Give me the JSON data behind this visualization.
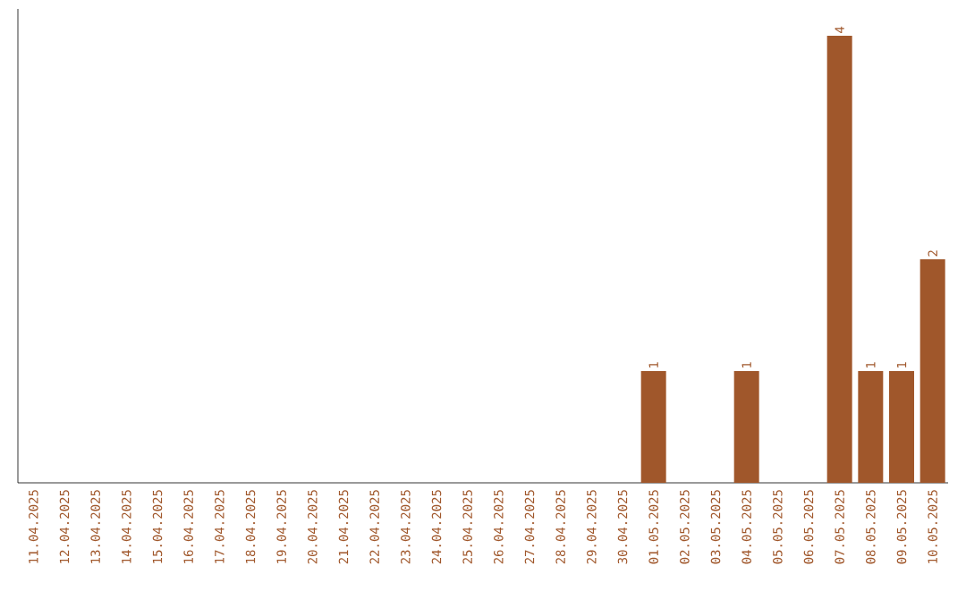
{
  "chart_data": {
    "type": "bar",
    "categories": [
      "11.04.2025",
      "12.04.2025",
      "13.04.2025",
      "14.04.2025",
      "15.04.2025",
      "16.04.2025",
      "17.04.2025",
      "18.04.2025",
      "19.04.2025",
      "20.04.2025",
      "21.04.2025",
      "22.04.2025",
      "23.04.2025",
      "24.04.2025",
      "25.04.2025",
      "26.04.2025",
      "27.04.2025",
      "28.04.2025",
      "29.04.2025",
      "30.04.2025",
      "01.05.2025",
      "02.05.2025",
      "03.05.2025",
      "04.05.2025",
      "05.05.2025",
      "06.05.2025",
      "07.05.2025",
      "08.05.2025",
      "09.05.2025",
      "10.05.2025"
    ],
    "values": [
      null,
      null,
      null,
      null,
      null,
      null,
      null,
      null,
      null,
      null,
      null,
      null,
      null,
      null,
      null,
      null,
      null,
      null,
      null,
      null,
      1,
      null,
      null,
      1,
      null,
      null,
      4,
      1,
      1,
      2
    ],
    "value_labels": [
      null,
      null,
      null,
      null,
      null,
      null,
      null,
      null,
      null,
      null,
      null,
      null,
      null,
      null,
      null,
      null,
      null,
      null,
      null,
      null,
      "1",
      null,
      null,
      "1",
      null,
      null,
      "4",
      "1",
      "1",
      "2"
    ],
    "color": "#a0572b",
    "tick_labels": "x"
  }
}
